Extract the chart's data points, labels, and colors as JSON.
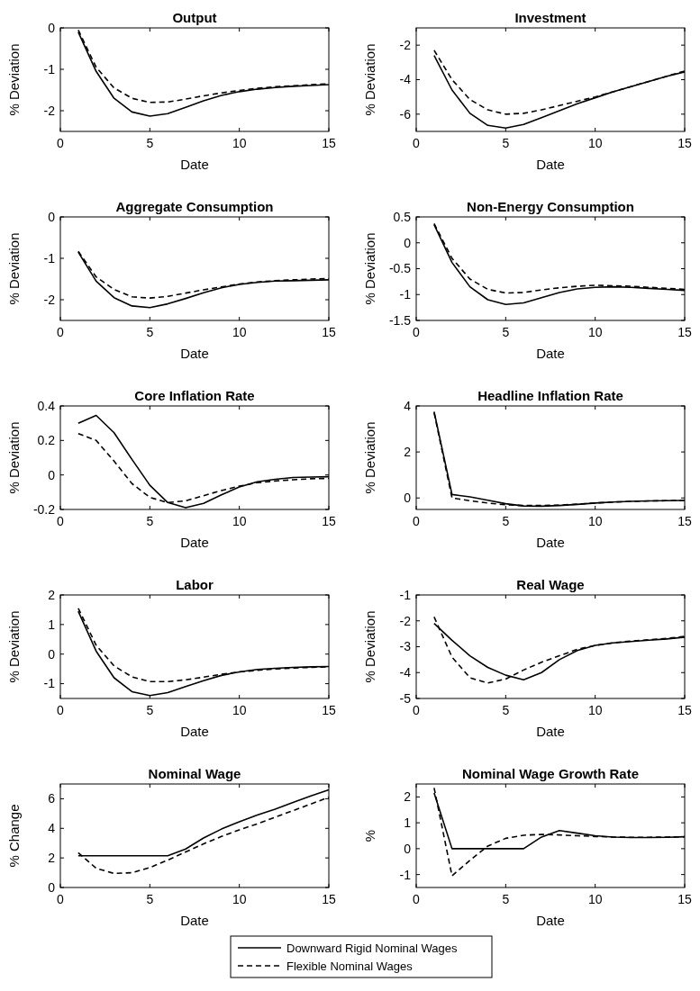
{
  "chart_data": [
    {
      "type": "line",
      "title": "Output",
      "xlabel": "Date",
      "ylabel": "% Deviation",
      "xlim": [
        0,
        15
      ],
      "xticks": [
        0,
        5,
        10,
        15
      ],
      "ylim": [
        -2.5,
        0
      ],
      "yticks": [
        -2,
        -1,
        0
      ],
      "legend": "bottom",
      "x": [
        1,
        2,
        3,
        4,
        5,
        6,
        7,
        8,
        9,
        10,
        11,
        12,
        13,
        14,
        15
      ],
      "series": [
        {
          "name": "Downward Rigid Nominal Wages",
          "color": "#000000",
          "line_style": "solid",
          "values": [
            -0.1,
            -1.05,
            -1.7,
            -2.03,
            -2.13,
            -2.07,
            -1.92,
            -1.76,
            -1.63,
            -1.54,
            -1.48,
            -1.44,
            -1.41,
            -1.39,
            -1.37
          ]
        },
        {
          "name": "Flexible Nominal Wages",
          "color": "#000000",
          "line_style": "dashed",
          "values": [
            -0.05,
            -0.95,
            -1.45,
            -1.7,
            -1.8,
            -1.79,
            -1.72,
            -1.64,
            -1.57,
            -1.51,
            -1.46,
            -1.42,
            -1.4,
            -1.37,
            -1.35
          ]
        }
      ]
    },
    {
      "type": "line",
      "title": "Investment",
      "xlabel": "Date",
      "ylabel": "% Deviation",
      "xlim": [
        0,
        15
      ],
      "xticks": [
        0,
        5,
        10,
        15
      ],
      "ylim": [
        -7,
        -1
      ],
      "yticks": [
        -6,
        -4,
        -2
      ],
      "x": [
        1,
        2,
        3,
        4,
        5,
        6,
        7,
        8,
        9,
        10,
        11,
        12,
        13,
        14,
        15
      ],
      "series": [
        {
          "color": "#000000",
          "line_style": "solid",
          "values": [
            -2.6,
            -4.6,
            -5.95,
            -6.65,
            -6.8,
            -6.6,
            -6.2,
            -5.8,
            -5.4,
            -5.05,
            -4.7,
            -4.4,
            -4.1,
            -3.8,
            -3.55
          ]
        },
        {
          "color": "#000000",
          "line_style": "dashed",
          "values": [
            -2.3,
            -4.0,
            -5.15,
            -5.75,
            -6.0,
            -5.95,
            -5.75,
            -5.5,
            -5.25,
            -5.0,
            -4.7,
            -4.4,
            -4.1,
            -3.8,
            -3.5
          ]
        }
      ]
    },
    {
      "type": "line",
      "title": "Aggregate Consumption",
      "xlabel": "Date",
      "ylabel": "% Deviation",
      "xlim": [
        0,
        15
      ],
      "xticks": [
        0,
        5,
        10,
        15
      ],
      "ylim": [
        -2.5,
        0
      ],
      "yticks": [
        -2,
        -1,
        0
      ],
      "x": [
        1,
        2,
        3,
        4,
        5,
        6,
        7,
        8,
        9,
        10,
        11,
        12,
        13,
        14,
        15
      ],
      "series": [
        {
          "color": "#000000",
          "line_style": "solid",
          "values": [
            -0.85,
            -1.55,
            -1.95,
            -2.15,
            -2.19,
            -2.1,
            -1.97,
            -1.83,
            -1.71,
            -1.63,
            -1.58,
            -1.55,
            -1.54,
            -1.53,
            -1.52
          ]
        },
        {
          "color": "#000000",
          "line_style": "dashed",
          "values": [
            -0.83,
            -1.45,
            -1.75,
            -1.93,
            -1.96,
            -1.92,
            -1.84,
            -1.76,
            -1.69,
            -1.62,
            -1.57,
            -1.54,
            -1.52,
            -1.5,
            -1.49
          ]
        }
      ]
    },
    {
      "type": "line",
      "title": "Non-Energy Consumption",
      "xlabel": "Date",
      "ylabel": "% Deviation",
      "xlim": [
        0,
        15
      ],
      "xticks": [
        0,
        5,
        10,
        15
      ],
      "ylim": [
        -1.5,
        0.5
      ],
      "yticks": [
        -1.5,
        -1,
        -0.5,
        0,
        0.5
      ],
      "x": [
        1,
        2,
        3,
        4,
        5,
        6,
        7,
        8,
        9,
        10,
        11,
        12,
        13,
        14,
        15
      ],
      "series": [
        {
          "color": "#000000",
          "line_style": "solid",
          "values": [
            0.35,
            -0.38,
            -0.85,
            -1.1,
            -1.19,
            -1.16,
            -1.06,
            -0.96,
            -0.89,
            -0.86,
            -0.85,
            -0.86,
            -0.88,
            -0.9,
            -0.92
          ]
        },
        {
          "color": "#000000",
          "line_style": "dashed",
          "values": [
            0.37,
            -0.3,
            -0.7,
            -0.9,
            -0.97,
            -0.96,
            -0.91,
            -0.87,
            -0.84,
            -0.82,
            -0.83,
            -0.84,
            -0.86,
            -0.88,
            -0.9
          ]
        }
      ]
    },
    {
      "type": "line",
      "title": "Core Inflation Rate",
      "xlabel": "Date",
      "ylabel": "% Deviation",
      "xlim": [
        0,
        15
      ],
      "xticks": [
        0,
        5,
        10,
        15
      ],
      "ylim": [
        -0.2,
        0.4
      ],
      "yticks": [
        -0.2,
        0,
        0.2,
        0.4
      ],
      "x": [
        1,
        2,
        3,
        4,
        5,
        6,
        7,
        8,
        9,
        10,
        11,
        12,
        13,
        14,
        15
      ],
      "series": [
        {
          "color": "#000000",
          "line_style": "solid",
          "values": [
            0.3,
            0.345,
            0.245,
            0.09,
            -0.06,
            -0.16,
            -0.19,
            -0.165,
            -0.115,
            -0.07,
            -0.04,
            -0.025,
            -0.015,
            -0.012,
            -0.01
          ]
        },
        {
          "color": "#000000",
          "line_style": "dashed",
          "values": [
            0.24,
            0.2,
            0.08,
            -0.05,
            -0.13,
            -0.16,
            -0.15,
            -0.12,
            -0.09,
            -0.065,
            -0.045,
            -0.035,
            -0.028,
            -0.022,
            -0.02
          ]
        }
      ]
    },
    {
      "type": "line",
      "title": "Headline Inflation Rate",
      "xlabel": "Date",
      "ylabel": "% Deviation",
      "xlim": [
        0,
        15
      ],
      "xticks": [
        0,
        5,
        10,
        15
      ],
      "ylim": [
        -0.5,
        4
      ],
      "yticks": [
        0,
        2,
        4
      ],
      "x": [
        1,
        2,
        3,
        4,
        5,
        6,
        7,
        8,
        9,
        10,
        11,
        12,
        13,
        14,
        15
      ],
      "series": [
        {
          "color": "#000000",
          "line_style": "solid",
          "values": [
            3.75,
            0.15,
            0.05,
            -0.1,
            -0.25,
            -0.35,
            -0.36,
            -0.33,
            -0.28,
            -0.22,
            -0.18,
            -0.15,
            -0.13,
            -0.12,
            -0.11
          ]
        },
        {
          "color": "#000000",
          "line_style": "dashed",
          "values": [
            3.7,
            0.0,
            -0.12,
            -0.22,
            -0.3,
            -0.33,
            -0.33,
            -0.31,
            -0.27,
            -0.22,
            -0.18,
            -0.15,
            -0.13,
            -0.12,
            -0.11
          ]
        }
      ]
    },
    {
      "type": "line",
      "title": "Labor",
      "xlabel": "Date",
      "ylabel": "% Deviation",
      "xlim": [
        0,
        15
      ],
      "xticks": [
        0,
        5,
        10,
        15
      ],
      "ylim": [
        -1.5,
        2
      ],
      "yticks": [
        -1,
        0,
        1,
        2
      ],
      "x": [
        1,
        2,
        3,
        4,
        5,
        6,
        7,
        8,
        9,
        10,
        11,
        12,
        13,
        14,
        15
      ],
      "series": [
        {
          "color": "#000000",
          "line_style": "solid",
          "values": [
            1.45,
            0.1,
            -0.8,
            -1.27,
            -1.4,
            -1.3,
            -1.1,
            -0.9,
            -0.72,
            -0.6,
            -0.52,
            -0.48,
            -0.45,
            -0.43,
            -0.42
          ]
        },
        {
          "color": "#000000",
          "line_style": "dashed",
          "values": [
            1.55,
            0.3,
            -0.4,
            -0.77,
            -0.93,
            -0.93,
            -0.87,
            -0.78,
            -0.68,
            -0.6,
            -0.55,
            -0.5,
            -0.47,
            -0.45,
            -0.43
          ]
        }
      ]
    },
    {
      "type": "line",
      "title": "Real Wage",
      "xlabel": "Date",
      "ylabel": "% Deviation",
      "xlim": [
        0,
        15
      ],
      "xticks": [
        0,
        5,
        10,
        15
      ],
      "ylim": [
        -5,
        -1
      ],
      "yticks": [
        -5,
        -4,
        -3,
        -2,
        -1
      ],
      "x": [
        1,
        2,
        3,
        4,
        5,
        6,
        7,
        8,
        9,
        10,
        11,
        12,
        13,
        14,
        15
      ],
      "series": [
        {
          "color": "#000000",
          "line_style": "solid",
          "values": [
            -2.1,
            -2.75,
            -3.35,
            -3.8,
            -4.1,
            -4.28,
            -4.0,
            -3.5,
            -3.15,
            -2.95,
            -2.85,
            -2.8,
            -2.75,
            -2.7,
            -2.63
          ]
        },
        {
          "color": "#000000",
          "line_style": "dashed",
          "values": [
            -1.85,
            -3.4,
            -4.2,
            -4.4,
            -4.25,
            -3.9,
            -3.6,
            -3.35,
            -3.1,
            -2.95,
            -2.85,
            -2.78,
            -2.73,
            -2.68,
            -2.6
          ]
        }
      ]
    },
    {
      "type": "line",
      "title": "Nominal Wage",
      "xlabel": "Date",
      "ylabel": "% Change",
      "xlim": [
        0,
        15
      ],
      "xticks": [
        0,
        5,
        10,
        15
      ],
      "ylim": [
        0,
        7
      ],
      "yticks": [
        0,
        2,
        4,
        6
      ],
      "x": [
        1,
        2,
        3,
        4,
        5,
        6,
        7,
        8,
        9,
        10,
        11,
        12,
        13,
        14,
        15
      ],
      "series": [
        {
          "color": "#000000",
          "line_style": "solid",
          "values": [
            2.15,
            2.15,
            2.15,
            2.15,
            2.15,
            2.15,
            2.6,
            3.35,
            3.95,
            4.45,
            4.9,
            5.3,
            5.75,
            6.2,
            6.6
          ]
        },
        {
          "color": "#000000",
          "line_style": "dashed",
          "values": [
            2.35,
            1.3,
            0.95,
            1.0,
            1.35,
            1.85,
            2.4,
            2.95,
            3.45,
            3.9,
            4.3,
            4.75,
            5.2,
            5.65,
            6.1
          ]
        }
      ]
    },
    {
      "type": "line",
      "title": "Nominal Wage Growth Rate",
      "xlabel": "Date",
      "ylabel": "%",
      "xlim": [
        0,
        15
      ],
      "xticks": [
        0,
        5,
        10,
        15
      ],
      "ylim": [
        -1.5,
        2.5
      ],
      "yticks": [
        -1,
        0,
        1,
        2
      ],
      "x": [
        1,
        2,
        3,
        4,
        5,
        6,
        7,
        8,
        9,
        10,
        11,
        12,
        13,
        14,
        15
      ],
      "series": [
        {
          "color": "#000000",
          "line_style": "solid",
          "values": [
            2.15,
            0,
            0,
            0,
            0,
            0,
            0.45,
            0.7,
            0.6,
            0.5,
            0.45,
            0.43,
            0.43,
            0.44,
            0.46
          ]
        },
        {
          "color": "#000000",
          "line_style": "dashed",
          "values": [
            2.35,
            -1.05,
            -0.45,
            0.1,
            0.4,
            0.52,
            0.55,
            0.53,
            0.5,
            0.47,
            0.45,
            0.44,
            0.44,
            0.45,
            0.46
          ]
        }
      ]
    }
  ]
}
